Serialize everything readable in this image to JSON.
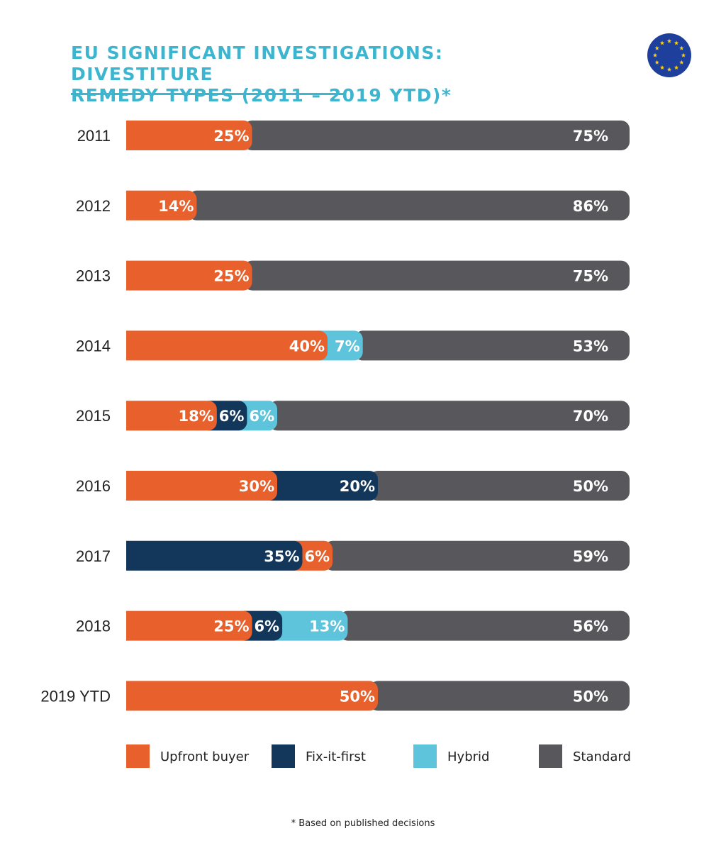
{
  "title_line1": "EU SIGNIFICANT INVESTIGATIONS: DIVESTITURE",
  "title_line2": "REMEDY TYPES (2011 – 2019 YTD)*",
  "footnote": "* Based on published decisions",
  "colors": {
    "title": "#3db5cf",
    "upfront_buyer": "#e8612c",
    "fix_it_first": "#12375a",
    "hybrid": "#5ec4dc",
    "standard": "#58585c"
  },
  "icons": [
    "eu-flag-icon"
  ],
  "chart_data": {
    "type": "bar",
    "orientation": "horizontal",
    "stacked": true,
    "normalized_percent": true,
    "title": "EU SIGNIFICANT INVESTIGATIONS: DIVESTITURE REMEDY TYPES (2011 – 2019 YTD)*",
    "xlabel": "",
    "ylabel": "",
    "xlim": [
      0,
      100
    ],
    "grid": false,
    "legend_position": "bottom",
    "categories": [
      "2011",
      "2012",
      "2013",
      "2014",
      "2015",
      "2016",
      "2017",
      "2018",
      "2019 YTD"
    ],
    "series": [
      {
        "name": "Upfront buyer",
        "color": "#e8612c",
        "values": [
          25,
          14,
          25,
          40,
          18,
          30,
          6,
          25,
          50
        ]
      },
      {
        "name": "Fix-it-first",
        "color": "#12375a",
        "values": [
          0,
          0,
          0,
          0,
          6,
          20,
          35,
          6,
          0
        ]
      },
      {
        "name": "Hybrid",
        "color": "#5ec4dc",
        "values": [
          0,
          0,
          0,
          7,
          6,
          0,
          0,
          13,
          0
        ]
      },
      {
        "name": "Standard",
        "color": "#58585c",
        "values": [
          75,
          86,
          75,
          53,
          70,
          50,
          59,
          56,
          50
        ]
      }
    ],
    "segment_order": [
      [
        "Upfront buyer",
        "Standard"
      ],
      [
        "Upfront buyer",
        "Standard"
      ],
      [
        "Upfront buyer",
        "Standard"
      ],
      [
        "Upfront buyer",
        "Hybrid",
        "Standard"
      ],
      [
        "Upfront buyer",
        "Fix-it-first",
        "Hybrid",
        "Standard"
      ],
      [
        "Upfront buyer",
        "Fix-it-first",
        "Standard"
      ],
      [
        "Fix-it-first",
        "Upfront buyer",
        "Standard"
      ],
      [
        "Upfront buyer",
        "Fix-it-first",
        "Hybrid",
        "Standard"
      ],
      [
        "Upfront buyer",
        "Standard"
      ]
    ],
    "value_suffix": "%"
  }
}
